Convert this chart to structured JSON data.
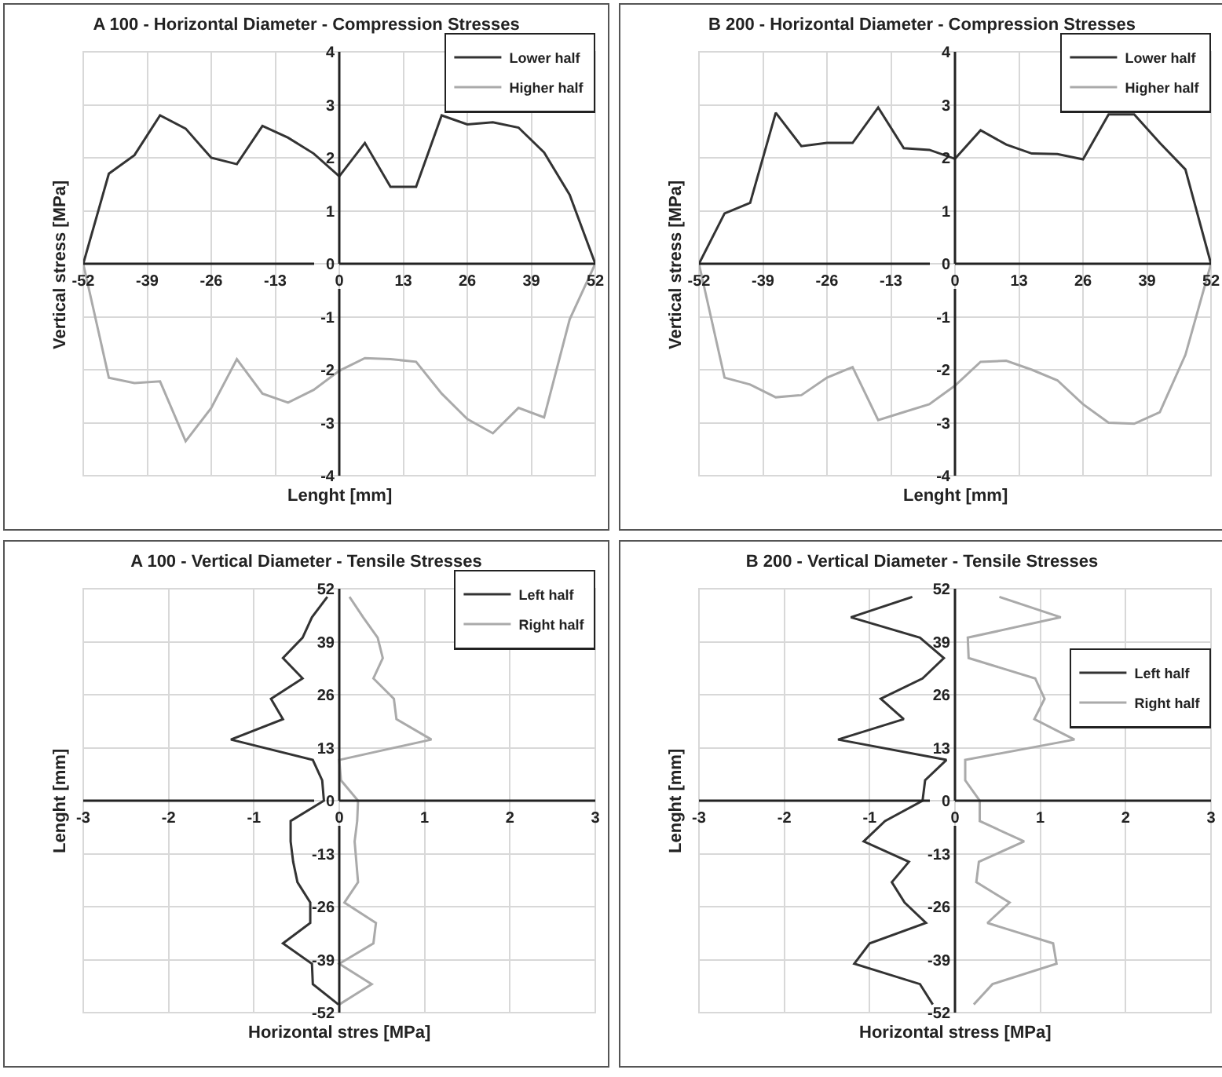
{
  "chart_data": [
    {
      "type": "line",
      "title": "A 100 - Horizontal Diameter - Compression Stresses",
      "xlabel": "Lenght [mm]",
      "ylabel": "Vertical stress [MPa]",
      "x": [
        -52,
        -46.8,
        -41.6,
        -36.4,
        -31.2,
        -26,
        -20.8,
        -15.6,
        -10.4,
        -5.2,
        0,
        5.2,
        10.4,
        15.6,
        20.8,
        26,
        31.2,
        36.4,
        41.6,
        46.8,
        52
      ],
      "series": [
        {
          "name": "Lower half",
          "color": "#333333",
          "values": [
            0,
            1.7,
            2.05,
            2.8,
            2.55,
            2.0,
            1.88,
            2.6,
            2.38,
            2.08,
            1.65,
            2.28,
            1.45,
            1.45,
            2.8,
            2.63,
            2.67,
            2.57,
            2.1,
            1.3,
            0
          ]
        },
        {
          "name": "Higher half",
          "color": "#aaaaaa",
          "values": [
            0,
            -2.15,
            -2.25,
            -2.22,
            -3.35,
            -2.72,
            -1.8,
            -2.45,
            -2.62,
            -2.38,
            -2.02,
            -1.78,
            -1.8,
            -1.85,
            -2.45,
            -2.93,
            -3.2,
            -2.72,
            -2.9,
            -1.05,
            0
          ]
        }
      ],
      "xlim": [
        -52,
        52
      ],
      "xticks": [
        -52,
        -39,
        -26,
        -13,
        0,
        13,
        26,
        39,
        52
      ],
      "ylim": [
        -4,
        4
      ],
      "yticks": [
        -4,
        -3,
        -2,
        -1,
        0,
        1,
        2,
        3,
        4
      ],
      "grid": true,
      "legend": "top right"
    },
    {
      "type": "line",
      "title": "B 200 - Horizontal Diameter - Compression Stresses",
      "xlabel": "Lenght [mm]",
      "ylabel": "Vertical stress [MPa]",
      "x": [
        -52,
        -46.8,
        -41.6,
        -36.4,
        -31.2,
        -26,
        -20.8,
        -15.6,
        -10.4,
        -5.2,
        0,
        5.2,
        10.4,
        15.6,
        20.8,
        26,
        31.2,
        36.4,
        41.6,
        46.8,
        52
      ],
      "series": [
        {
          "name": "Lower half",
          "color": "#333333",
          "values": [
            0,
            0.95,
            1.15,
            2.85,
            2.22,
            2.28,
            2.28,
            2.95,
            2.18,
            2.15,
            1.98,
            2.52,
            2.25,
            2.08,
            2.07,
            1.97,
            2.82,
            2.82,
            2.28,
            1.78,
            0
          ]
        },
        {
          "name": "Higher half",
          "color": "#aaaaaa",
          "values": [
            0,
            -2.15,
            -2.28,
            -2.52,
            -2.48,
            -2.15,
            -1.95,
            -2.95,
            -2.8,
            -2.65,
            -2.3,
            -1.85,
            -1.83,
            -2.0,
            -2.2,
            -2.65,
            -3.0,
            -3.02,
            -2.8,
            -1.72,
            0
          ]
        }
      ],
      "xlim": [
        -52,
        52
      ],
      "xticks": [
        -52,
        -39,
        -26,
        -13,
        0,
        13,
        26,
        39,
        52
      ],
      "ylim": [
        -4,
        4
      ],
      "yticks": [
        -4,
        -3,
        -2,
        -1,
        0,
        1,
        2,
        3,
        4
      ],
      "grid": true,
      "legend": "top right"
    },
    {
      "type": "line",
      "title": "A 100 - Vertical Diameter - Tensile Stresses",
      "xlabel": "Horizontal stres [MPa]",
      "ylabel": "Lenght [mm]",
      "series": [
        {
          "name": "Left half",
          "color": "#333333",
          "x": [
            -0.14,
            -0.32,
            -0.43,
            -0.66,
            -0.43,
            -0.8,
            -0.66,
            -1.27,
            -0.31,
            -0.2,
            -0.18,
            -0.57,
            -0.57,
            -0.54,
            -0.49,
            -0.34,
            -0.34,
            -0.66,
            -0.32,
            -0.31,
            -0.01
          ],
          "values": [
            50,
            45,
            40,
            35,
            30,
            25,
            20,
            15,
            10,
            5,
            0,
            -5,
            -10,
            -15,
            -20,
            -25,
            -30,
            -35,
            -40,
            -45,
            -50
          ]
        },
        {
          "name": "Right half",
          "color": "#aaaaaa",
          "x": [
            0.12,
            0.28,
            0.45,
            0.51,
            0.4,
            0.64,
            0.67,
            1.08,
            0,
            0.02,
            0.22,
            0.21,
            0.18,
            0.2,
            0.22,
            0.06,
            0.43,
            0.4,
            0,
            0.38,
            0
          ],
          "values": [
            50,
            45,
            40,
            35,
            30,
            25,
            20,
            15,
            10,
            5,
            0,
            -5,
            -10,
            -15,
            -20,
            -25,
            -30,
            -35,
            -40,
            -45,
            -50
          ]
        }
      ],
      "xlim": [
        -3,
        3
      ],
      "xticks": [
        -3,
        -2,
        -1,
        0,
        1,
        2,
        3
      ],
      "ylim": [
        -52,
        52
      ],
      "yticks": [
        -52,
        -39,
        -26,
        -13,
        0,
        13,
        26,
        39,
        52
      ],
      "grid": true,
      "legend": "top right"
    },
    {
      "type": "line",
      "title": "B 200 - Vertical Diameter - Tensile Stresses",
      "xlabel": "Horizontal stress [MPa]",
      "ylabel": "Lenght [mm]",
      "series": [
        {
          "name": "Left half",
          "color": "#333333",
          "x": [
            -0.5,
            -1.22,
            -0.41,
            -0.13,
            -0.38,
            -0.87,
            -0.6,
            -1.37,
            -0.1,
            -0.35,
            -0.38,
            -0.82,
            -1.07,
            -0.54,
            -0.74,
            -0.59,
            -0.34,
            -1.0,
            -1.18,
            -0.41,
            -0.26
          ],
          "values": [
            50,
            45,
            40,
            35,
            30,
            25,
            20,
            15,
            10,
            5,
            0,
            -5,
            -10,
            -15,
            -20,
            -25,
            -30,
            -35,
            -40,
            -45,
            -50
          ]
        },
        {
          "name": "Right half",
          "color": "#aaaaaa",
          "x": [
            0.52,
            1.24,
            0.15,
            0.16,
            0.94,
            1.05,
            0.93,
            1.4,
            0.12,
            0.12,
            0.29,
            0.29,
            0.81,
            0.28,
            0.25,
            0.64,
            0.38,
            1.15,
            1.19,
            0.44,
            0.22
          ],
          "values": [
            50,
            45,
            40,
            35,
            30,
            25,
            20,
            15,
            10,
            5,
            0,
            -5,
            -10,
            -15,
            -20,
            -25,
            -30,
            -35,
            -40,
            -45,
            -50
          ]
        }
      ],
      "xlim": [
        -3,
        3
      ],
      "xticks": [
        -3,
        -2,
        -1,
        0,
        1,
        2,
        3
      ],
      "ylim": [
        -52,
        52
      ],
      "yticks": [
        -52,
        -39,
        -26,
        -13,
        0,
        13,
        26,
        39,
        52
      ],
      "grid": true,
      "legend": "right"
    }
  ]
}
